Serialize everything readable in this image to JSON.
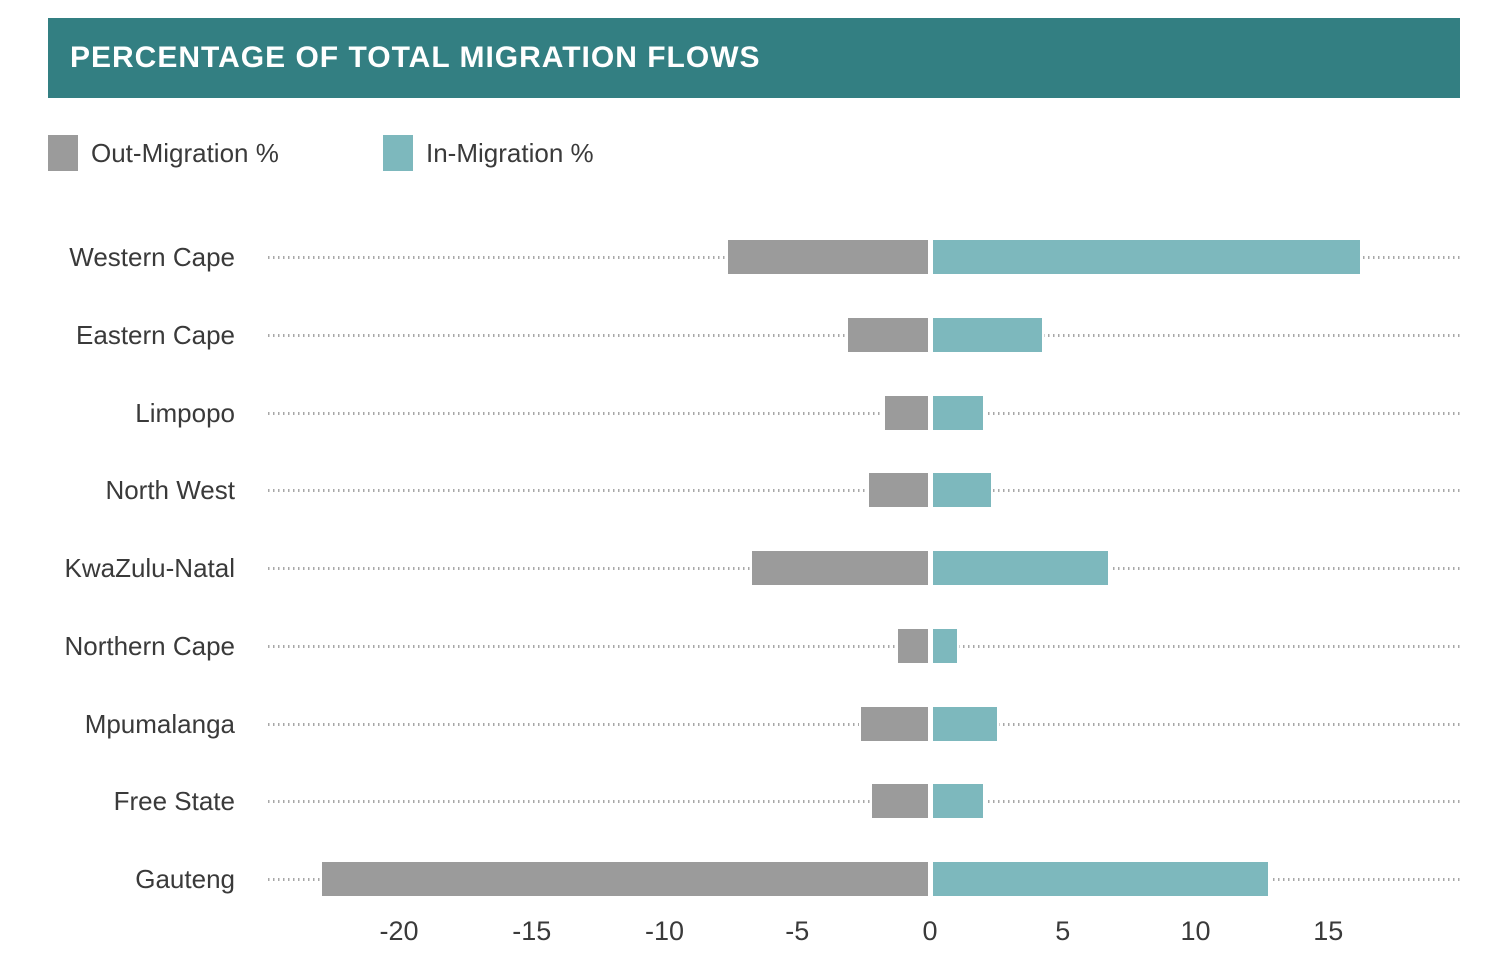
{
  "header": {
    "title": "PERCENTAGE OF TOTAL MIGRATION FLOWS",
    "bg_color": "#337f82",
    "text_color": "#ffffff"
  },
  "legend": [
    {
      "label": "Out-Migration %",
      "color": "#9b9b9b"
    },
    {
      "label": "In-Migration %",
      "color": "#7db8bd"
    }
  ],
  "chart_data": {
    "type": "bar",
    "orientation": "horizontal-diverging",
    "title": "PERCENTAGE OF TOTAL MIGRATION FLOWS",
    "categories": [
      "Western Cape",
      "Eastern Cape",
      "Limpopo",
      "North West",
      "KwaZulu-Natal",
      "Northern Cape",
      "Mpumalanga",
      "Free State",
      "Gauteng"
    ],
    "series": [
      {
        "name": "Out-Migration %",
        "color": "#9b9b9b",
        "values": [
          -7.6,
          -3.1,
          -1.7,
          -2.3,
          -6.7,
          -1.2,
          -2.6,
          -2.2,
          -22.9
        ]
      },
      {
        "name": "In-Migration %",
        "color": "#7db8bd",
        "values": [
          16.1,
          4.1,
          1.9,
          2.2,
          6.6,
          0.9,
          2.4,
          1.9,
          12.6
        ]
      }
    ],
    "x_ticks": [
      -20,
      -15,
      -10,
      -5,
      0,
      5,
      10,
      15
    ],
    "xlim": [
      -25,
      20
    ],
    "xlabel": "",
    "ylabel": "",
    "grid": "dotted horizontal leader line per category row",
    "legend_position": "top-left"
  }
}
